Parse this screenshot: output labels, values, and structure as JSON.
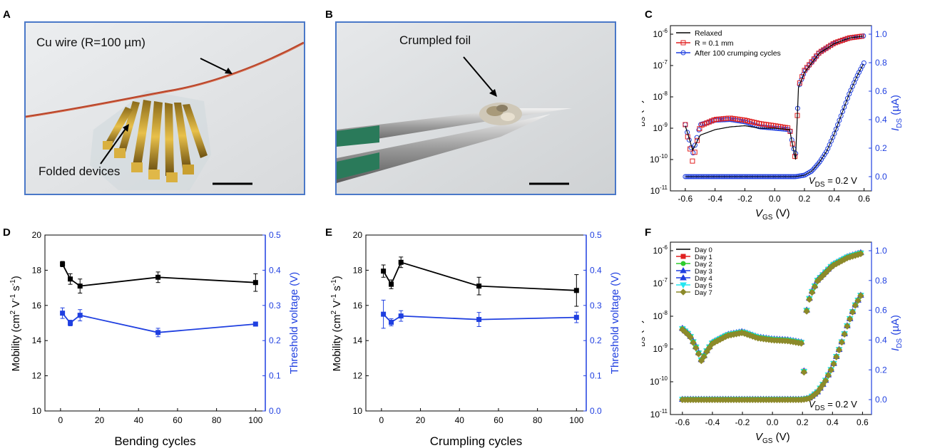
{
  "panels": {
    "A": "A",
    "B": "B",
    "C": "C",
    "D": "D",
    "E": "E",
    "F": "F"
  },
  "photo_a": {
    "wire_label": "Cu wire (R=100 µm)",
    "devices_label": "Folded devices"
  },
  "photo_b": {
    "foil_label": "Crumpled foil"
  },
  "colors": {
    "blue_axis": "#1f3fe0",
    "black": "#000000",
    "red": "#e02020",
    "green": "#2ecc2e",
    "cyan": "#22e6f0",
    "olive": "#8c8a2a"
  },
  "chart_data": [
    {
      "id": "C",
      "type": "line",
      "xlabel_main": "V",
      "xlabel_sub": "GS",
      "xlabel_unit": " (V)",
      "ylabel_main": "I",
      "ylabel_sub": "DS",
      "ylabel_unit": " (A)",
      "y2label_main": "I",
      "y2label_sub": "DS",
      "y2label_unit": " (µA)",
      "xlim": [
        -0.7,
        0.65
      ],
      "ylim_log": [
        1e-11,
        1e-06
      ],
      "y2lim": [
        -0.1,
        1.0
      ],
      "xticks": [
        "-0.6",
        "-0.4",
        "-0.2",
        "0.0",
        "0.2",
        "0.4",
        "0.6"
      ],
      "y2ticks": [
        "0.0",
        "0.2",
        "0.4",
        "0.6",
        "0.8",
        "1.0"
      ],
      "legend": [
        "Relaxed",
        "R = 0.1 mm",
        "After 100 crumping cycles"
      ],
      "annotation": "V",
      "annotation_sub": "DS",
      "annotation_value": " = 0.2 V",
      "series": [
        {
          "name": "Relaxed",
          "x": [
            -0.6,
            -0.55,
            -0.5,
            -0.4,
            -0.3,
            -0.2,
            -0.1,
            0.0,
            0.1,
            0.14,
            0.16,
            0.2,
            0.3,
            0.4,
            0.5,
            0.6
          ],
          "y": [
            1.2e-09,
            2e-10,
            6e-10,
            9e-10,
            1.1e-09,
            1.2e-09,
            1e-09,
            1e-09,
            9e-10,
            1e-10,
            2e-08,
            6e-08,
            2.5e-07,
            5e-07,
            7.5e-07,
            8.8e-07
          ]
        },
        {
          "name": "R = 0.1 mm",
          "x": [
            -0.6,
            -0.55,
            -0.5,
            -0.4,
            -0.3,
            -0.2,
            -0.1,
            0.0,
            0.1,
            0.14,
            0.16,
            0.2,
            0.3,
            0.4,
            0.5,
            0.6
          ],
          "y": [
            1.3e-09,
            8e-11,
            1.2e-09,
            1.9e-09,
            2.1e-09,
            1.8e-09,
            1.4e-09,
            1.2e-09,
            1e-09,
            1e-10,
            2.2e-08,
            7e-08,
            2.6e-07,
            5.2e-07,
            7.6e-07,
            8.8e-07
          ]
        },
        {
          "name": "After 100 crumping cycles",
          "x": [
            -0.6,
            -0.55,
            -0.5,
            -0.4,
            -0.3,
            -0.2,
            -0.1,
            0.0,
            0.1,
            0.14,
            0.16,
            0.2,
            0.3,
            0.4,
            0.5,
            0.6
          ],
          "y": [
            1.3e-09,
            1.5e-10,
            1.3e-09,
            1.8e-09,
            1.9e-09,
            1.6e-09,
            1.1e-09,
            1e-09,
            9e-10,
            1.2e-10,
            2e-08,
            6.5e-08,
            2.6e-07,
            5.2e-07,
            7.5e-07,
            8.9e-07
          ]
        }
      ],
      "linear_series": {
        "name": "After 100 crumping cycles",
        "x": [
          -0.6,
          -0.4,
          -0.2,
          0.0,
          0.1,
          0.14,
          0.2,
          0.25,
          0.3,
          0.35,
          0.4,
          0.45,
          0.5,
          0.55,
          0.6
        ],
        "y": [
          0.0,
          0.0,
          0.0,
          0.0,
          0.0,
          0.0,
          0.01,
          0.04,
          0.1,
          0.18,
          0.3,
          0.44,
          0.58,
          0.7,
          0.8
        ]
      }
    },
    {
      "id": "D",
      "type": "line",
      "xlabel": "Bending cycles",
      "ylabel_text": "Mobility (cm",
      "ylabel_tail": " V",
      "ylabel_end": " s",
      "y2label": "Threshold voltage (V)",
      "xlim": [
        -8,
        105
      ],
      "ylim": [
        10,
        20
      ],
      "y2lim": [
        0.0,
        0.5
      ],
      "xticks": [
        "0",
        "20",
        "40",
        "60",
        "80",
        "100"
      ],
      "yticks": [
        "10",
        "12",
        "14",
        "16",
        "18",
        "20"
      ],
      "y2ticks": [
        "0.0",
        "0.1",
        "0.2",
        "0.3",
        "0.4",
        "0.5"
      ],
      "series": [
        {
          "name": "",
          "axis": "left",
          "x": [
            1,
            5,
            10,
            50,
            100
          ],
          "y": [
            18.35,
            17.5,
            17.1,
            17.6,
            17.3
          ],
          "err": [
            0.15,
            0.3,
            0.4,
            0.3,
            0.5
          ]
        },
        {
          "name": "",
          "axis": "right",
          "x": [
            1,
            5,
            10,
            50,
            100
          ],
          "y": [
            0.278,
            0.25,
            0.272,
            0.223,
            0.247
          ],
          "err": [
            0.015,
            0.008,
            0.016,
            0.012,
            0.005
          ]
        }
      ]
    },
    {
      "id": "E",
      "type": "line",
      "xlabel": "Crumpling cycles",
      "ylabel_text": "Mobility (cm",
      "ylabel_tail": " V",
      "ylabel_end": " s",
      "y2label": "Threshold voltage (V)",
      "xlim": [
        -8,
        105
      ],
      "ylim": [
        10,
        20
      ],
      "y2lim": [
        0.0,
        0.5
      ],
      "xticks": [
        "0",
        "20",
        "40",
        "60",
        "80",
        "100"
      ],
      "yticks": [
        "10",
        "12",
        "14",
        "16",
        "18",
        "20"
      ],
      "y2ticks": [
        "0.0",
        "0.1",
        "0.2",
        "0.3",
        "0.4",
        "0.5"
      ],
      "series": [
        {
          "name": "",
          "axis": "left",
          "x": [
            1,
            5,
            10,
            50,
            100
          ],
          "y": [
            17.95,
            17.2,
            18.45,
            17.1,
            16.85
          ],
          "err": [
            0.35,
            0.25,
            0.3,
            0.5,
            0.9
          ]
        },
        {
          "name": "",
          "axis": "right",
          "x": [
            1,
            5,
            10,
            50,
            100
          ],
          "y": [
            0.275,
            0.252,
            0.27,
            0.26,
            0.266
          ],
          "err": [
            0.04,
            0.01,
            0.015,
            0.02,
            0.015
          ]
        }
      ]
    },
    {
      "id": "F",
      "type": "line",
      "xlabel_main": "V",
      "xlabel_sub": "GS",
      "xlabel_unit": " (V)",
      "ylabel_main": "I",
      "ylabel_sub": "DS",
      "ylabel_unit": " (A)",
      "y2label_main": "I",
      "y2label_sub": "DS",
      "y2label_unit": " (µA)",
      "xlim": [
        -0.68,
        0.66
      ],
      "ylim_log": [
        1e-11,
        1e-06
      ],
      "y2lim": [
        -0.1,
        1.0
      ],
      "xticks": [
        "-0.6",
        "-0.4",
        "-0.2",
        "0.0",
        "0.2",
        "0.4",
        "0.6"
      ],
      "y2ticks": [
        "0.0",
        "0.2",
        "0.4",
        "0.6",
        "0.8",
        "1.0"
      ],
      "legend": [
        "Day 0",
        "Day 1",
        "Day 2",
        "Day 3",
        "Day 4",
        "Day 5",
        "Day 7"
      ],
      "annotation": "V",
      "annotation_sub": "DS",
      "annotation_value": " = 0.2 V",
      "log_curve": {
        "x": [
          -0.6,
          -0.55,
          -0.5,
          -0.47,
          -0.45,
          -0.4,
          -0.3,
          -0.2,
          -0.1,
          0.0,
          0.1,
          0.2,
          0.21,
          0.22,
          0.25,
          0.3,
          0.4,
          0.5,
          0.6
        ],
        "y": [
          4e-09,
          2.5e-09,
          9e-10,
          4e-10,
          7e-10,
          1.5e-09,
          2.6e-09,
          3.2e-09,
          2.2e-09,
          1.9e-09,
          1.8e-09,
          1.5e-09,
          2e-10,
          1e-08,
          4e-08,
          1.2e-07,
          3.5e-07,
          6.2e-07,
          8.5e-07
        ]
      },
      "linear_curve": {
        "x": [
          -0.6,
          -0.4,
          -0.2,
          0.0,
          0.1,
          0.2,
          0.25,
          0.3,
          0.35,
          0.4,
          0.45,
          0.5,
          0.55,
          0.6
        ],
        "y": [
          0.0,
          0.0,
          0.0,
          0.0,
          0.0,
          0.0,
          0.01,
          0.05,
          0.12,
          0.22,
          0.35,
          0.5,
          0.63,
          0.72
        ]
      }
    }
  ]
}
